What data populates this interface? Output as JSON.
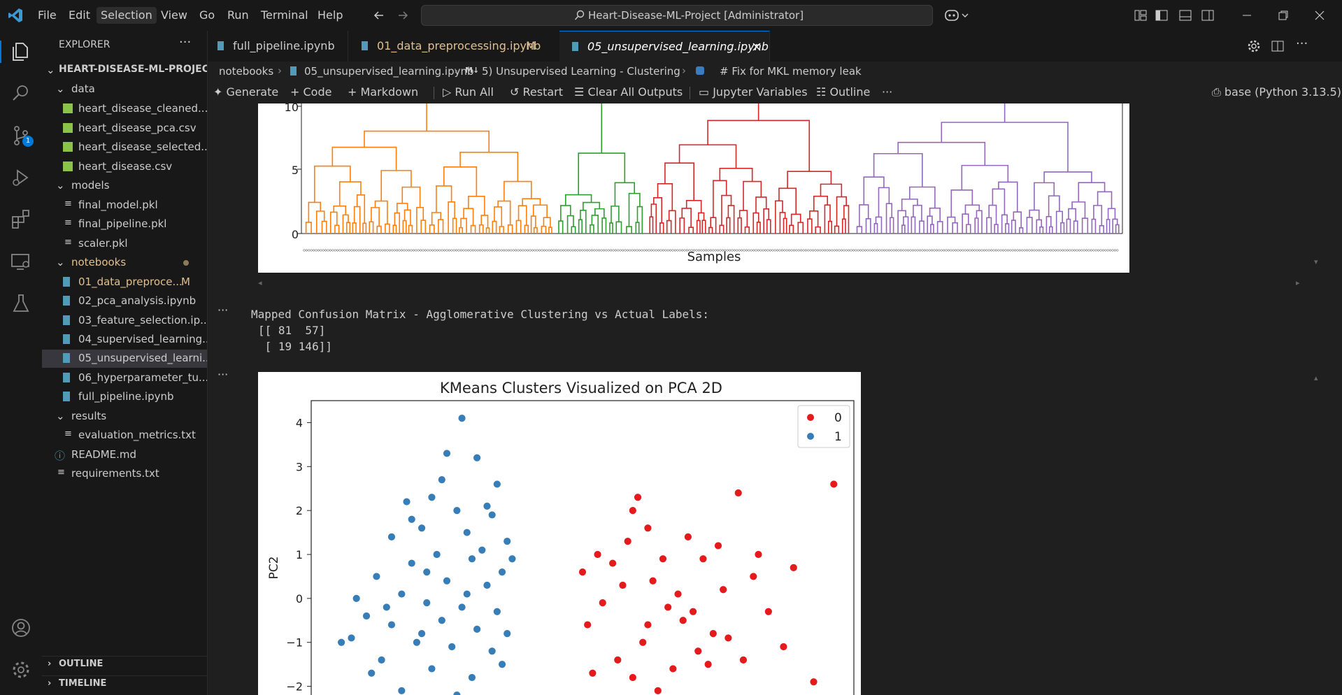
{
  "menu": [
    "File",
    "Edit",
    "Selection",
    "View",
    "Go",
    "Run",
    "Terminal",
    "Help"
  ],
  "search": {
    "label": "Heart-Disease-ML-Project [Administrator]"
  },
  "explorer": {
    "title": "EXPLORER",
    "project": "HEART-DISEASE-ML-PROJECT",
    "data_folder": "data",
    "data_files": [
      "heart_disease_cleaned....",
      "heart_disease_pca.csv",
      "heart_disease_selected....",
      "heart_disease.csv"
    ],
    "models_folder": "models",
    "models_files": [
      "final_model.pkl",
      "final_pipeline.pkl",
      "scaler.pkl"
    ],
    "notebooks_folder": "notebooks",
    "notebook_files": [
      "01_data_preproce...",
      "02_pca_analysis.ipynb",
      "03_feature_selection.ip...",
      "04_supervised_learning...",
      "05_unsupervised_learni...",
      "06_hyperparameter_tu...",
      "full_pipeline.ipynb"
    ],
    "modified_badge": "M",
    "results_folder": "results",
    "results_files": [
      "evaluation_metrics.txt"
    ],
    "root_files": [
      "README.md",
      "requirements.txt"
    ],
    "outline": "OUTLINE",
    "timeline": "TIMELINE"
  },
  "scm_badge": "1",
  "tabs": [
    {
      "label": "full_pipeline.ipynb"
    },
    {
      "label": "01_data_preprocessing.ipynb",
      "badge": "M"
    },
    {
      "label": "05_unsupervised_learning.ipynb"
    }
  ],
  "breadcrumb": [
    "notebooks",
    "05_unsupervised_learning.ipynb",
    "5) Unsupervised Learning - Clustering",
    "# Fix for MKL memory leak"
  ],
  "toolbar": {
    "generate": "Generate",
    "code": "Code",
    "markdown": "Markdown",
    "run_all": "Run All",
    "restart": "Restart",
    "clear": "Clear All Outputs",
    "variables": "Jupyter Variables",
    "outline": "Outline",
    "more": "···",
    "kernel": "base (Python 3.13.5)"
  },
  "cell_menu": "···",
  "dendrogram": {
    "yticks": [
      "0",
      "5",
      "10"
    ],
    "xlabel": "Samples"
  },
  "confusion": {
    "title": "Mapped Confusion Matrix - Agglomerative Clustering vs Actual Labels:",
    "row1": "[[ 81  57]",
    "row2": " [ 19 146]]"
  },
  "chart_data": {
    "type": "scatter",
    "title": "KMeans Clusters Visualized on PCA 2D",
    "xlabel": "",
    "ylabel": "PC2",
    "ylim": [
      -2.5,
      4.5
    ],
    "yticks": [
      4,
      3,
      2,
      1,
      0,
      -1,
      -2
    ],
    "legend": [
      "0",
      "1"
    ],
    "colors": {
      "0": "#e41a1c",
      "1": "#377eb8"
    },
    "series": [
      {
        "name": "0",
        "points": [
          [
            2.3,
            2.3
          ],
          [
            2.5,
            1.6
          ],
          [
            2.1,
            1.3
          ],
          [
            1.5,
            1.0
          ],
          [
            1.8,
            0.8
          ],
          [
            2.6,
            0.4
          ],
          [
            2.9,
            -0.2
          ],
          [
            3.2,
            -0.5
          ],
          [
            2.4,
            -1.0
          ],
          [
            1.9,
            -1.4
          ],
          [
            2.2,
            -1.8
          ],
          [
            2.7,
            -2.1
          ],
          [
            3.0,
            -1.6
          ],
          [
            3.5,
            -1.2
          ],
          [
            3.8,
            -0.8
          ],
          [
            4.0,
            0.2
          ],
          [
            3.6,
            0.9
          ],
          [
            3.3,
            1.4
          ],
          [
            4.3,
            2.4
          ],
          [
            4.6,
            0.5
          ],
          [
            4.9,
            -0.3
          ],
          [
            5.2,
            -1.1
          ],
          [
            5.4,
            0.7
          ],
          [
            5.8,
            -1.9
          ],
          [
            6.2,
            2.6
          ],
          [
            1.3,
            -0.6
          ],
          [
            1.6,
            -0.1
          ],
          [
            2.0,
            0.3
          ],
          [
            2.8,
            0.9
          ],
          [
            3.1,
            0.1
          ],
          [
            3.4,
            -0.3
          ],
          [
            3.7,
            -1.5
          ],
          [
            4.1,
            -0.9
          ],
          [
            4.4,
            -1.4
          ],
          [
            1.2,
            0.6
          ],
          [
            1.4,
            -1.7
          ],
          [
            2.5,
            -0.6
          ],
          [
            3.9,
            1.2
          ],
          [
            4.7,
            1.0
          ],
          [
            2.2,
            2.0
          ]
        ]
      },
      {
        "name": "1",
        "points": [
          [
            -1.2,
            4.1
          ],
          [
            -1.5,
            3.3
          ],
          [
            -0.9,
            3.2
          ],
          [
            -0.5,
            2.6
          ],
          [
            -1.8,
            2.3
          ],
          [
            -2.3,
            2.2
          ],
          [
            -1.3,
            2.0
          ],
          [
            -0.6,
            1.9
          ],
          [
            -2.0,
            1.6
          ],
          [
            -2.6,
            1.4
          ],
          [
            -1.1,
            1.5
          ],
          [
            -0.3,
            1.3
          ],
          [
            -1.7,
            1.0
          ],
          [
            -2.2,
            0.8
          ],
          [
            -1.0,
            0.9
          ],
          [
            -0.4,
            0.6
          ],
          [
            -2.9,
            0.5
          ],
          [
            -1.5,
            0.4
          ],
          [
            -0.7,
            0.3
          ],
          [
            -2.4,
            0.1
          ],
          [
            -1.9,
            -0.1
          ],
          [
            -1.2,
            -0.2
          ],
          [
            -0.5,
            -0.3
          ],
          [
            -3.1,
            -0.4
          ],
          [
            -2.6,
            -0.6
          ],
          [
            -1.6,
            -0.5
          ],
          [
            -0.9,
            -0.7
          ],
          [
            -3.4,
            -0.9
          ],
          [
            -2.1,
            -1.0
          ],
          [
            -1.4,
            -1.1
          ],
          [
            -0.6,
            -1.2
          ],
          [
            -2.8,
            -1.4
          ],
          [
            -1.8,
            -1.6
          ],
          [
            -1.0,
            -1.8
          ],
          [
            -3.0,
            -1.7
          ],
          [
            -2.4,
            -2.1
          ],
          [
            -1.3,
            -2.2
          ],
          [
            -0.4,
            -1.5
          ],
          [
            -3.6,
            -1.0
          ],
          [
            -0.2,
            0.9
          ],
          [
            -0.8,
            1.1
          ],
          [
            -1.9,
            0.6
          ],
          [
            -2.7,
            -0.2
          ],
          [
            -1.1,
            0.1
          ],
          [
            -0.3,
            -0.8
          ],
          [
            -2.2,
            1.8
          ],
          [
            -1.6,
            2.7
          ],
          [
            -0.7,
            2.1
          ],
          [
            -3.3,
            0.0
          ],
          [
            -2.0,
            -0.8
          ]
        ]
      }
    ]
  }
}
